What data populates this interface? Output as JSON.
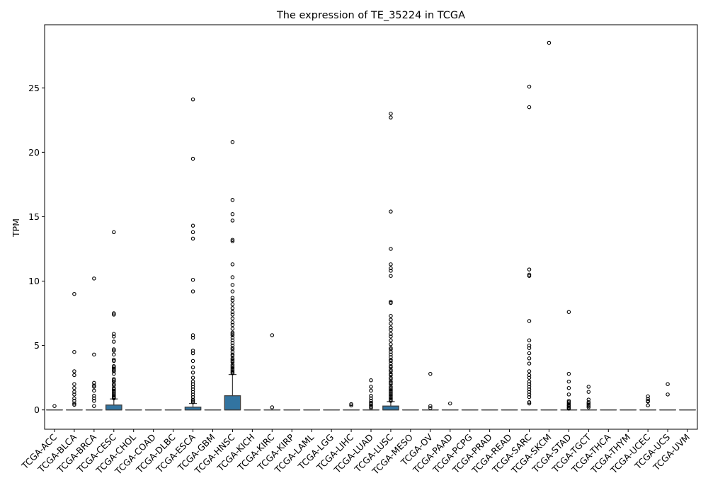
{
  "chart_data": {
    "type": "boxplot",
    "title": "The expression of TE_35224 in TCGA",
    "xlabel": "",
    "ylabel": "TPM",
    "ylim": [
      -1.5,
      29.9
    ],
    "yticks": [
      0,
      5,
      10,
      15,
      20,
      25
    ],
    "grid": false,
    "box_color": "#3274a1",
    "categories": [
      "TCGA-ACC",
      "TCGA-BLCA",
      "TCGA-BRCA",
      "TCGA-CESC",
      "TCGA-CHOL",
      "TCGA-COAD",
      "TCGA-DLBC",
      "TCGA-ESCA",
      "TCGA-GBM",
      "TCGA-HNSC",
      "TCGA-KICH",
      "TCGA-KIRC",
      "TCGA-KIRP",
      "TCGA-LAML",
      "TCGA-LGG",
      "TCGA-LIHC",
      "TCGA-LUAD",
      "TCGA-LUSC",
      "TCGA-MESO",
      "TCGA-OV",
      "TCGA-PAAD",
      "TCGA-PCPG",
      "TCGA-PRAD",
      "TCGA-READ",
      "TCGA-SARC",
      "TCGA-SKCM",
      "TCGA-STAD",
      "TCGA-TGCT",
      "TCGA-THCA",
      "TCGA-THYM",
      "TCGA-UCEC",
      "TCGA-UCS",
      "TCGA-UVM"
    ],
    "boxes": [
      {
        "q1": 0,
        "median": 0,
        "q3": 0,
        "whisker_low": 0,
        "whisker_high": 0,
        "outliers": [
          0.3
        ]
      },
      {
        "q1": 0,
        "median": 0,
        "q3": 0,
        "whisker_low": 0,
        "whisker_high": 0,
        "outliers": [
          9.0,
          4.5,
          3.0,
          2.7,
          2.0,
          1.7,
          1.4,
          1.2,
          0.9,
          0.7,
          0.5,
          0.4
        ]
      },
      {
        "q1": 0,
        "median": 0,
        "q3": 0,
        "whisker_low": 0,
        "whisker_high": 0,
        "outliers": [
          10.2,
          4.3,
          2.1,
          1.9,
          1.8,
          1.5,
          1.1,
          0.9,
          0.7,
          0.3
        ]
      },
      {
        "q1": 0,
        "median": 0,
        "q3": 0.38,
        "whisker_low": 0,
        "whisker_high": 0.85,
        "outliers": [
          13.8,
          7.5,
          7.4,
          5.9,
          5.7,
          5.3,
          4.7,
          4.6,
          4.3,
          3.9,
          3.8,
          3.4,
          3.3,
          3.2,
          3.1,
          3.0,
          2.8,
          2.4,
          2.3,
          2.2,
          2.0,
          1.9,
          1.7,
          1.6,
          1.5,
          1.4,
          1.3,
          1.2,
          1.1,
          1.0,
          0.95,
          0.9
        ]
      },
      {
        "q1": 0,
        "median": 0,
        "q3": 0,
        "whisker_low": 0,
        "whisker_high": 0,
        "outliers": []
      },
      {
        "q1": 0,
        "median": 0,
        "q3": 0,
        "whisker_low": 0,
        "whisker_high": 0,
        "outliers": []
      },
      {
        "q1": 0,
        "median": 0,
        "q3": 0,
        "whisker_low": 0,
        "whisker_high": 0,
        "outliers": []
      },
      {
        "q1": 0,
        "median": 0,
        "q3": 0.22,
        "whisker_low": 0,
        "whisker_high": 0.5,
        "outliers": [
          24.1,
          19.5,
          14.3,
          13.8,
          13.3,
          10.1,
          9.2,
          5.8,
          5.6,
          4.6,
          4.4,
          3.8,
          3.3,
          2.9,
          2.5,
          2.2,
          2.0,
          1.8,
          1.6,
          1.4,
          1.2,
          1.0,
          0.8,
          0.7,
          0.6
        ]
      },
      {
        "q1": 0,
        "median": 0,
        "q3": 0,
        "whisker_low": 0,
        "whisker_high": 0,
        "outliers": []
      },
      {
        "q1": 0,
        "median": 0,
        "q3": 1.1,
        "whisker_low": 0,
        "whisker_high": 2.75,
        "outliers": [
          20.8,
          16.3,
          15.2,
          14.7,
          13.2,
          13.1,
          11.3,
          10.3,
          9.7,
          9.2,
          8.7,
          8.5,
          8.2,
          7.9,
          7.6,
          7.4,
          7.1,
          6.8,
          6.6,
          6.3,
          6.0,
          5.9,
          5.8,
          5.6,
          5.4,
          5.2,
          5.0,
          4.8,
          4.7,
          4.5,
          4.3,
          4.2,
          4.0,
          3.9,
          3.8,
          3.7,
          3.5,
          3.4,
          3.3,
          3.2,
          3.1,
          3.0,
          2.9,
          2.85
        ]
      },
      {
        "q1": 0,
        "median": 0,
        "q3": 0,
        "whisker_low": 0,
        "whisker_high": 0,
        "outliers": []
      },
      {
        "q1": 0,
        "median": 0,
        "q3": 0,
        "whisker_low": 0,
        "whisker_high": 0,
        "outliers": [
          5.8,
          0.2
        ]
      },
      {
        "q1": 0,
        "median": 0,
        "q3": 0,
        "whisker_low": 0,
        "whisker_high": 0,
        "outliers": []
      },
      {
        "q1": 0,
        "median": 0,
        "q3": 0,
        "whisker_low": 0,
        "whisker_high": 0,
        "outliers": []
      },
      {
        "q1": 0,
        "median": 0,
        "q3": 0,
        "whisker_low": 0,
        "whisker_high": 0,
        "outliers": []
      },
      {
        "q1": 0,
        "median": 0,
        "q3": 0,
        "whisker_low": 0,
        "whisker_high": 0,
        "outliers": [
          0.45,
          0.35
        ]
      },
      {
        "q1": 0,
        "median": 0,
        "q3": 0,
        "whisker_low": 0,
        "whisker_high": 0,
        "outliers": [
          2.3,
          1.8,
          1.5,
          1.1,
          0.9,
          0.7,
          0.55,
          0.45,
          0.35,
          0.25,
          0.15
        ]
      },
      {
        "q1": 0,
        "median": 0,
        "q3": 0.3,
        "whisker_low": 0,
        "whisker_high": 0.65,
        "outliers": [
          23.0,
          22.7,
          15.4,
          12.5,
          11.3,
          11.0,
          10.8,
          10.4,
          8.4,
          8.3,
          7.3,
          7.0,
          6.7,
          6.4,
          6.2,
          5.9,
          5.7,
          5.4,
          5.1,
          4.8,
          4.7,
          4.5,
          4.3,
          4.1,
          3.9,
          3.8,
          3.6,
          3.4,
          3.3,
          3.1,
          3.0,
          2.8,
          2.7,
          2.5,
          2.4,
          2.2,
          2.1,
          2.0,
          1.8,
          1.7,
          1.6,
          1.5,
          1.4,
          1.3,
          1.2,
          1.1,
          1.0,
          0.9,
          0.8,
          0.7
        ]
      },
      {
        "q1": 0,
        "median": 0,
        "q3": 0,
        "whisker_low": 0,
        "whisker_high": 0,
        "outliers": []
      },
      {
        "q1": 0,
        "median": 0,
        "q3": 0,
        "whisker_low": 0,
        "whisker_high": 0,
        "outliers": [
          2.8,
          0.3,
          0.15
        ]
      },
      {
        "q1": 0,
        "median": 0,
        "q3": 0,
        "whisker_low": 0,
        "whisker_high": 0,
        "outliers": [
          0.5
        ]
      },
      {
        "q1": 0,
        "median": 0,
        "q3": 0,
        "whisker_low": 0,
        "whisker_high": 0,
        "outliers": []
      },
      {
        "q1": 0,
        "median": 0,
        "q3": 0,
        "whisker_low": 0,
        "whisker_high": 0,
        "outliers": []
      },
      {
        "q1": 0,
        "median": 0,
        "q3": 0,
        "whisker_low": 0,
        "whisker_high": 0,
        "outliers": []
      },
      {
        "q1": 0,
        "median": 0,
        "q3": 0,
        "whisker_low": 0,
        "whisker_high": 0,
        "outliers": [
          25.1,
          23.5,
          10.9,
          10.5,
          10.4,
          6.9,
          5.4,
          5.0,
          4.8,
          4.4,
          4.0,
          3.6,
          3.0,
          2.7,
          2.5,
          2.2,
          2.0,
          1.8,
          1.6,
          1.4,
          1.2,
          1.0,
          0.6,
          0.5
        ]
      },
      {
        "q1": 0,
        "median": 0,
        "q3": 0,
        "whisker_low": 0,
        "whisker_high": 0,
        "outliers": [
          28.5
        ]
      },
      {
        "q1": 0,
        "median": 0,
        "q3": 0,
        "whisker_low": 0,
        "whisker_high": 0,
        "outliers": [
          7.6,
          2.8,
          2.2,
          1.7,
          1.2,
          0.7,
          0.6,
          0.5,
          0.4,
          0.35,
          0.3,
          0.2,
          0.15,
          0.1
        ]
      },
      {
        "q1": 0,
        "median": 0,
        "q3": 0,
        "whisker_low": 0,
        "whisker_high": 0,
        "outliers": [
          1.8,
          1.4,
          0.8,
          0.6,
          0.5,
          0.4,
          0.3,
          0.2
        ]
      },
      {
        "q1": 0,
        "median": 0,
        "q3": 0,
        "whisker_low": 0,
        "whisker_high": 0,
        "outliers": []
      },
      {
        "q1": 0,
        "median": 0,
        "q3": 0,
        "whisker_low": 0,
        "whisker_high": 0,
        "outliers": []
      },
      {
        "q1": 0,
        "median": 0,
        "q3": 0,
        "whisker_low": 0,
        "whisker_high": 0,
        "outliers": [
          1.05,
          0.85,
          0.7,
          0.65,
          0.35
        ]
      },
      {
        "q1": 0,
        "median": 0,
        "q3": 0,
        "whisker_low": 0,
        "whisker_high": 0,
        "outliers": [
          2.0,
          1.2
        ]
      },
      {
        "q1": 0,
        "median": 0,
        "q3": 0,
        "whisker_low": 0,
        "whisker_high": 0,
        "outliers": []
      }
    ]
  }
}
